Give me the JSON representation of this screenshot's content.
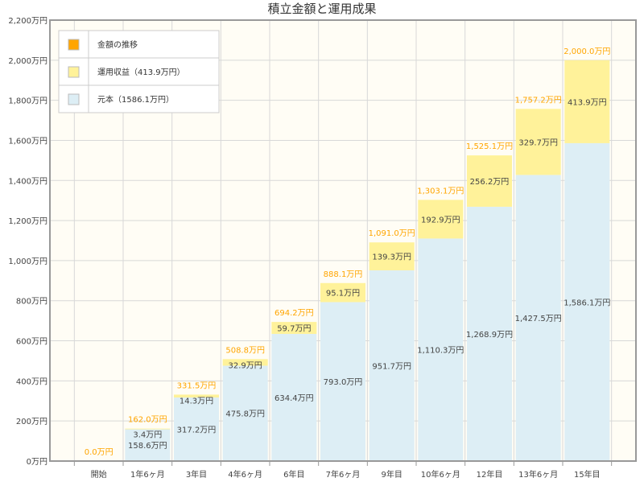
{
  "chart_data": {
    "type": "bar",
    "stacked": true,
    "title": "積立金額と運用成果",
    "categories": [
      "開始",
      "1年6ヶ月",
      "3年目",
      "4年6ヶ月",
      "6年目",
      "7年6ヶ月",
      "9年目",
      "10年6ヶ月",
      "12年目",
      "13年6ヶ月",
      "15年目"
    ],
    "series": [
      {
        "name": "元本（1586.1万円）",
        "color": "#ddeef5",
        "values": [
          0,
          158.6,
          317.2,
          475.8,
          634.4,
          793.0,
          951.7,
          1110.3,
          1268.9,
          1427.5,
          1586.1
        ],
        "labels": [
          "",
          "158.6万円",
          "317.2万円",
          "475.8万円",
          "634.4万円",
          "793.0万円",
          "951.7万円",
          "1,110.3万円",
          "1,268.9万円",
          "1,427.5万円",
          "1,586.1万円"
        ]
      },
      {
        "name": "運用収益（413.9万円）",
        "color": "#fff29a",
        "values": [
          0,
          3.4,
          14.3,
          32.9,
          59.7,
          95.1,
          139.3,
          192.9,
          256.2,
          329.7,
          413.9
        ],
        "labels": [
          "",
          "3.4万円",
          "14.3万円",
          "32.9万円",
          "59.7万円",
          "95.1万円",
          "139.3万円",
          "192.9万円",
          "256.2万円",
          "329.7万円",
          "413.9万円"
        ]
      }
    ],
    "totals": {
      "name": "金額の推移",
      "color": "#ffa500",
      "labels": [
        "0.0万円",
        "162.0万円",
        "331.5万円",
        "508.8万円",
        "694.2万円",
        "888.1万円",
        "1,091.0万円",
        "1,303.1万円",
        "1,525.1万円",
        "1,757.2万円",
        "2,000.0万円"
      ]
    },
    "yticks": [
      "0万円",
      "200万円",
      "400万円",
      "600万円",
      "800万円",
      "1,000万円",
      "1,200万円",
      "1,400万円",
      "1,600万円",
      "1,800万円",
      "2,000万円",
      "2,200万円"
    ],
    "ylim": [
      0,
      2200
    ],
    "grid": true,
    "legend_position": "top-left"
  }
}
